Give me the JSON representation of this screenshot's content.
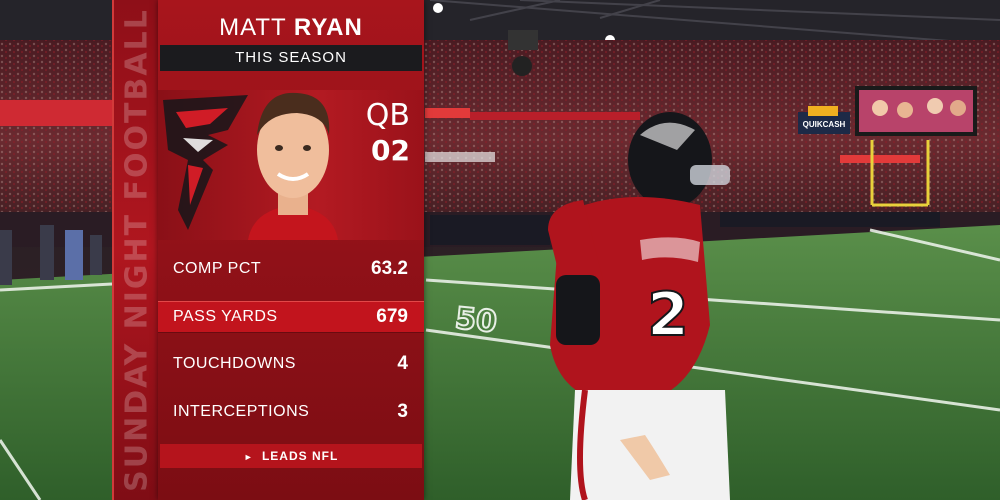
{
  "graphic": {
    "vertical_banner": "SUNDAY NIGHT FOOTBALL",
    "player_first": "MATT",
    "player_last": "RYAN",
    "subtitle": "THIS SEASON",
    "position": "QB",
    "jersey_number": "02",
    "stats": [
      {
        "label": "COMP PCT",
        "value": "63.2",
        "highlighted": false
      },
      {
        "label": "PASS YARDS",
        "value": "679",
        "highlighted": true
      },
      {
        "label": "TOUCHDOWNS",
        "value": "4",
        "highlighted": false
      },
      {
        "label": "INTERCEPTIONS",
        "value": "3",
        "highlighted": false
      }
    ],
    "footer": "LEADS NFL"
  },
  "scene": {
    "field_number": "50",
    "player_jersey_number": "2",
    "scoreboard_text": "QUIKCASH"
  },
  "colors": {
    "team_red": "#a8151c",
    "highlight_red": "#c2141d",
    "bar_dark": "#1b1b1e",
    "field_green": "#3d7a35"
  },
  "icons": {
    "team_logo": "falcons-logo-icon",
    "leads_arrow": "triangle-right-icon"
  }
}
